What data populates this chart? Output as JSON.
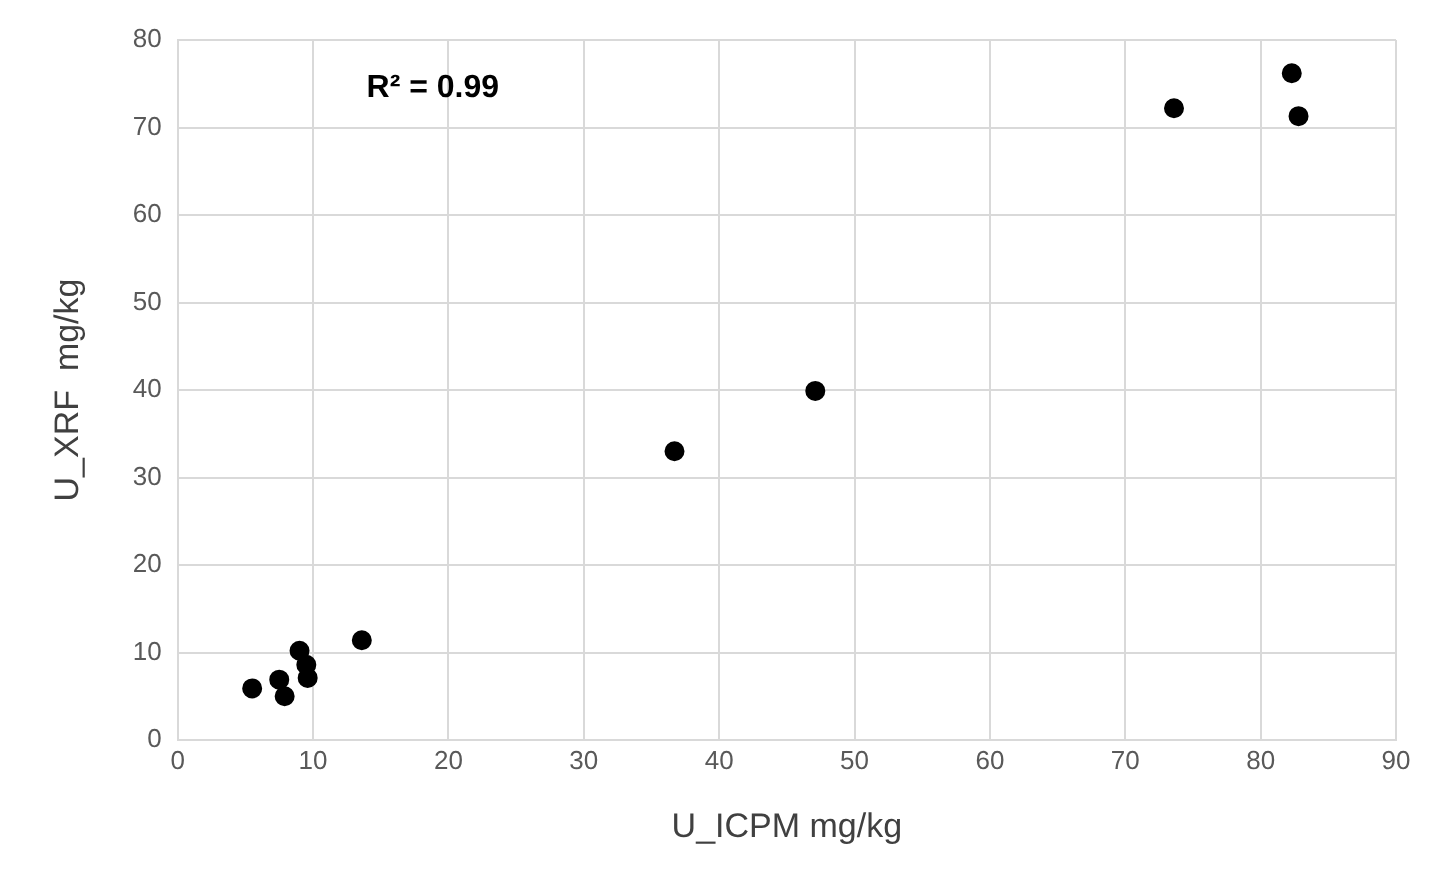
{
  "chart_data": {
    "type": "scatter",
    "xlabel": "U_ICPM mg/kg",
    "ylabel": "U_XRF  mg/kg",
    "annotations": [
      "R² = 0.99"
    ],
    "x": [
      5.5,
      7.5,
      7.9,
      9.0,
      9.5,
      9.6,
      13.6,
      36.7,
      47.1,
      73.6,
      82.3,
      82.8
    ],
    "series": [
      {
        "color": "#000000",
        "values": [
          5.9,
          6.9,
          5.0,
          10.2,
          8.6,
          7.1,
          11.4,
          33.0,
          39.9,
          72.2,
          76.2,
          71.3
        ]
      }
    ],
    "xlim": [
      0,
      90
    ],
    "xticks": [
      0,
      10,
      20,
      30,
      40,
      50,
      60,
      70,
      80,
      90
    ],
    "ylim": [
      0,
      80
    ],
    "yticks": [
      0,
      10,
      20,
      30,
      40,
      50,
      60,
      70,
      80
    ],
    "grid": true,
    "legend": false,
    "marker": "circle"
  }
}
